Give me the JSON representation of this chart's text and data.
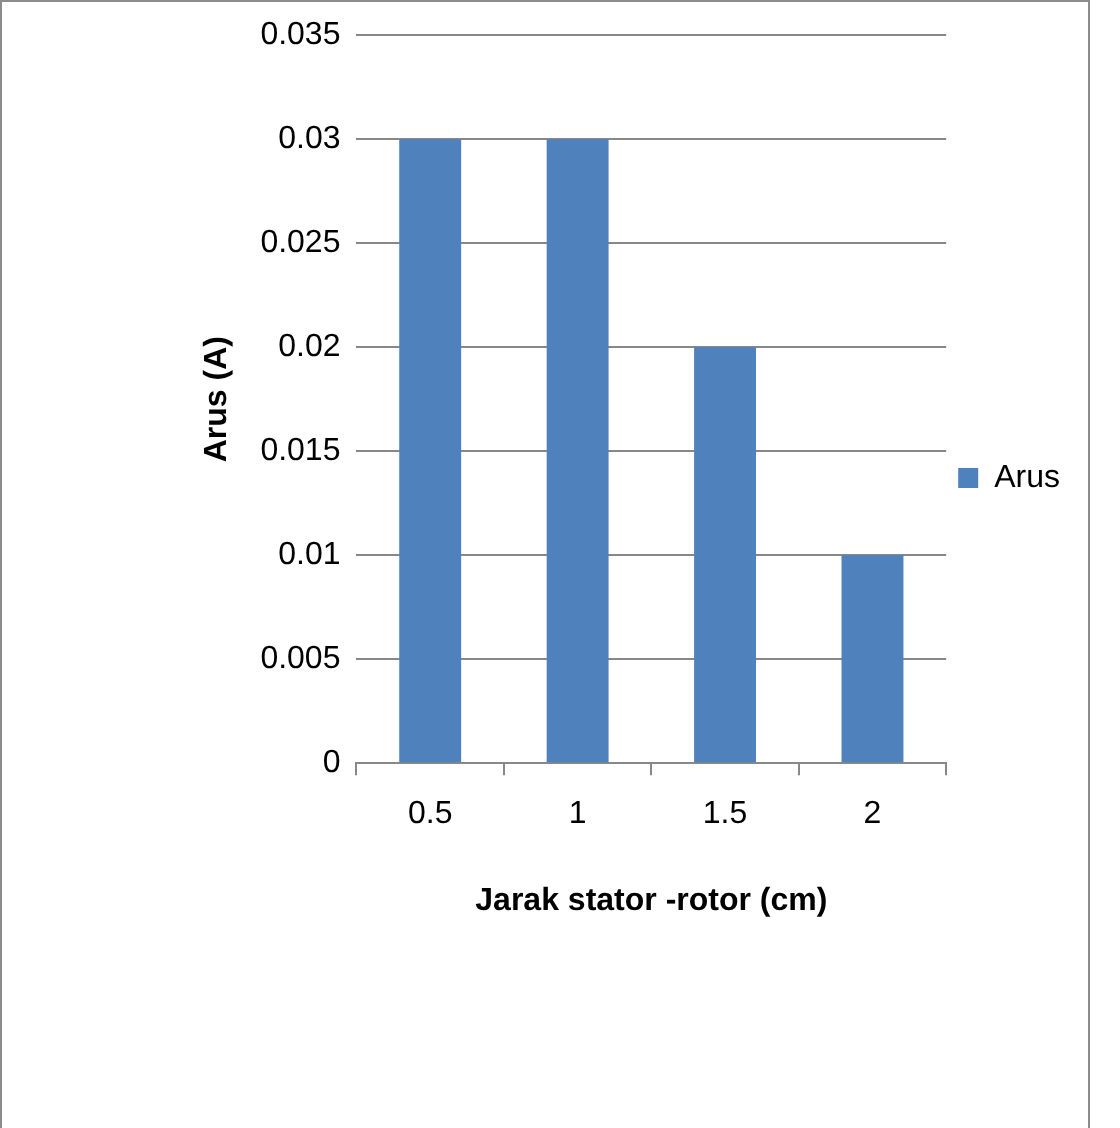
{
  "chart_data": {
    "type": "bar",
    "xlabel": "Jarak stator -rotor (cm)",
    "ylabel": "Arus (A)",
    "categories": [
      "0.5",
      "1",
      "1.5",
      "2"
    ],
    "series": [
      {
        "name": "Arus",
        "color": "#4f81bd",
        "values": [
          0.03,
          0.03,
          0.02,
          0.01
        ]
      }
    ],
    "ylim": [
      0,
      0.035
    ],
    "yticks": [
      0,
      0.005,
      0.01,
      0.015,
      0.02,
      0.025,
      0.03,
      0.035
    ],
    "grid": "y",
    "legend": "right"
  }
}
